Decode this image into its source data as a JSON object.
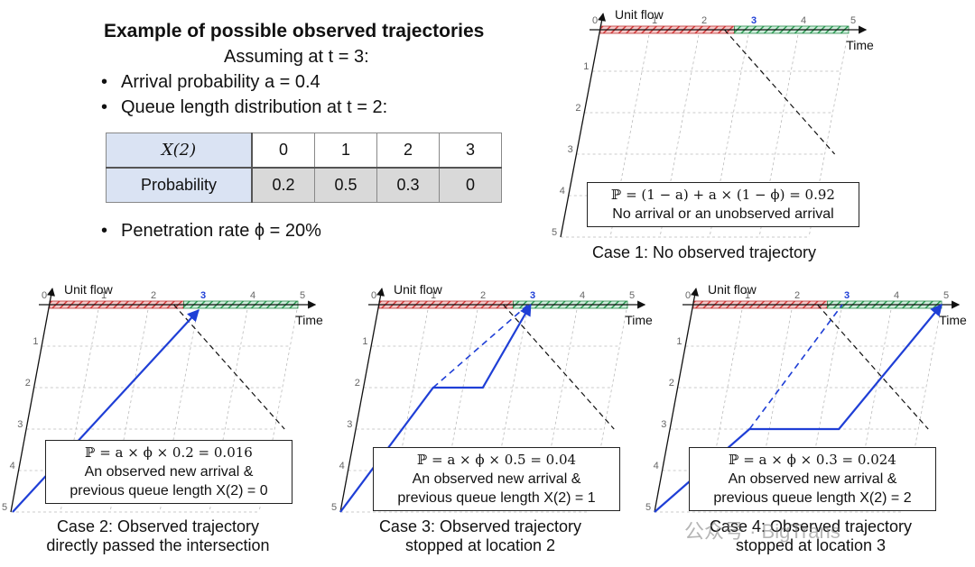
{
  "header": {
    "title": "Example of possible observed trajectories",
    "assuming": "Assuming at t = 3:",
    "bullets": [
      "Arrival probability a = 0.4",
      "Queue length distribution at t = 2:"
    ],
    "penetration": "Penetration rate ϕ = 20%"
  },
  "table": {
    "row1": [
      "X(2)",
      "0",
      "1",
      "2",
      "3"
    ],
    "row2": [
      "Probability",
      "0.2",
      "0.5",
      "0.3",
      "0"
    ]
  },
  "diagram_labels": {
    "unit_flow": "Unit flow",
    "time": "Time",
    "time_ticks": [
      "0",
      "1",
      "2",
      "3",
      "4",
      "5"
    ],
    "flow_ticks": [
      "1",
      "2",
      "3",
      "4",
      "5"
    ]
  },
  "cases": [
    {
      "eq": "ℙ = (1 − a) + a × (1 − ϕ) = 0.92",
      "desc": [
        "No arrival or an unobserved arrival"
      ],
      "caption": [
        "Case 1: No observed trajectory"
      ]
    },
    {
      "eq": "ℙ = a × ϕ × 0.2 = 0.016",
      "desc": [
        "An observed new arrival &",
        "previous queue length X(2) = 0"
      ],
      "caption": [
        "Case 2: Observed trajectory",
        "directly passed the intersection"
      ]
    },
    {
      "eq": "ℙ = a × ϕ × 0.5 = 0.04",
      "desc": [
        "An observed new arrival &",
        "previous queue length X(2) = 1"
      ],
      "caption": [
        "Case 3: Observed trajectory",
        "stopped at location 2"
      ]
    },
    {
      "eq": "ℙ = a × ϕ × 0.3 = 0.024",
      "desc": [
        "An observed new arrival &",
        "previous queue length X(2) = 2"
      ],
      "caption": [
        "Case 4: Observed trajectory",
        "stopped at location 3"
      ]
    }
  ],
  "watermark": "公众号 · BigTrans",
  "colors": {
    "red_phase": "#e05050",
    "green_phase": "#3caa5a",
    "trajectory": "#1f3fd6",
    "table_header": "#dae3f3",
    "table_cell": "#d9d9d9"
  }
}
